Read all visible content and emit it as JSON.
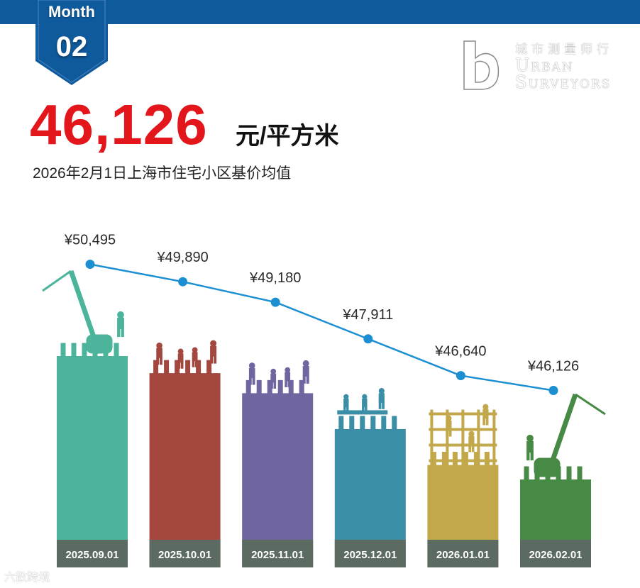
{
  "header": {
    "month_label": "Month",
    "month_number": "02",
    "brand_cn": "城市测量师行",
    "brand_en_line1": "Urban",
    "brand_en_line2": "Surveyors"
  },
  "hero": {
    "value": "46,126",
    "unit": "元/平方米",
    "subtitle": "2026年2月1日上海市住宅小区基价均值"
  },
  "colors": {
    "accent": "#e2161b",
    "band": "#0f5a9c",
    "line": "#1b8fd2",
    "bars": [
      "#4bb49b",
      "#a3473f",
      "#6f66a0",
      "#3a8fa6",
      "#c2a84a",
      "#478a45"
    ],
    "label_box": "#5c6b62"
  },
  "watermark": "六散跨境",
  "chart_data": {
    "type": "line",
    "categories": [
      "2025.09.01",
      "2025.10.01",
      "2025.11.01",
      "2025.12.01",
      "2026.01.01",
      "2026.02.01"
    ],
    "values": [
      50495,
      49890,
      49180,
      47911,
      46640,
      46126
    ],
    "value_labels": [
      "¥50,495",
      "¥49,890",
      "¥49,180",
      "¥47,911",
      "¥46,640",
      "¥46,126"
    ],
    "unit": "元/平方米",
    "ylim": [
      45500,
      51000
    ],
    "bar_silhouettes": [
      "crane-worker",
      "workers",
      "workers",
      "scaffold-workers",
      "scaffold-grid",
      "crane-worker"
    ]
  }
}
